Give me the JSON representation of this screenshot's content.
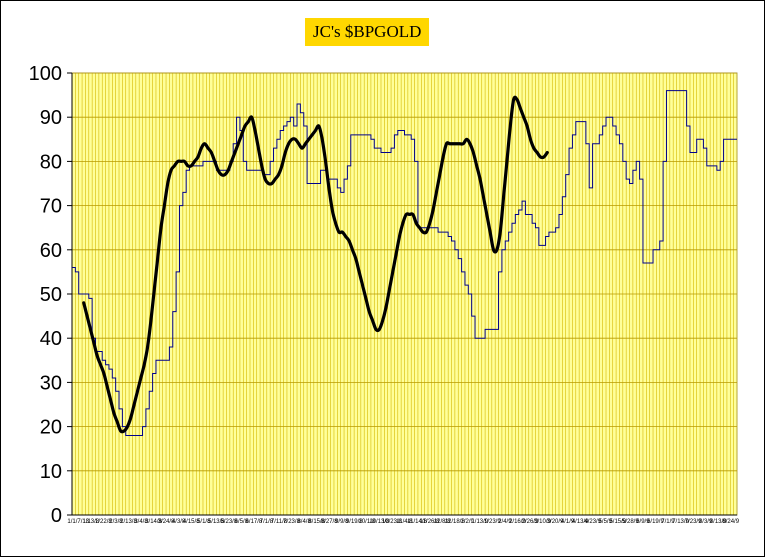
{
  "chart_data": {
    "type": "line",
    "title": "JC's $BPGOLD",
    "xlabel": "",
    "ylabel": "",
    "ylim": [
      0,
      100
    ],
    "yticks": [
      0,
      10,
      20,
      30,
      40,
      50,
      60,
      70,
      80,
      90,
      100
    ],
    "grid": true,
    "legend": "none",
    "x_tick_labels": [
      "1/1/7/13",
      "1/13/8",
      "1/22/8",
      "2/3/8",
      "2/13/8",
      "3/4/8",
      "3/14/8",
      "3/24/8",
      "4/3/8",
      "4/15/8",
      "5/1/8",
      "5/13/8",
      "5/23/8",
      "6/5/8",
      "6/17/8",
      "7/1/8",
      "7/11/8",
      "7/23/8",
      "8/4/8",
      "8/15/8",
      "8/27/8",
      "9/9/8",
      "9/19/8",
      "10/1/8",
      "10/13/8",
      "10/23/8",
      "11/4/8",
      "11/14/8",
      "11/26/8",
      "12/8/8",
      "12/18/8",
      "1/2/9",
      "1/13/9",
      "1/23/9",
      "2/4/9",
      "2/16/9",
      "2/26/9",
      "3/10/9",
      "3/20/9",
      "4/1/9",
      "4/13/9",
      "4/23/9",
      "5/5/9",
      "5/15/9",
      "5/28/9",
      "6/9/9",
      "6/19/9",
      "7/1/9",
      "7/13/9",
      "7/23/9",
      "8/3/9",
      "8/13/9",
      "8/24/9"
    ],
    "series": [
      {
        "name": "",
        "color": "#00008b",
        "style": "thin-step",
        "values": [
          56,
          55,
          50,
          50,
          50,
          49,
          40,
          37,
          37,
          35,
          34,
          33,
          31,
          28,
          24,
          20,
          18,
          18,
          18,
          18,
          18,
          20,
          24,
          28,
          32,
          35,
          35,
          35,
          35,
          38,
          46,
          55,
          70,
          73,
          78,
          79,
          79,
          79,
          79,
          80,
          80,
          80,
          80,
          78,
          78,
          78,
          78,
          80,
          84,
          90,
          87,
          80,
          78,
          78,
          78,
          78,
          78,
          77,
          77,
          80,
          83,
          85,
          87,
          88,
          89,
          90,
          88,
          93,
          91,
          88,
          75,
          75,
          75,
          75,
          78,
          78,
          76,
          76,
          76,
          74,
          73,
          76,
          79,
          86,
          86,
          86,
          86,
          86,
          86,
          85,
          83,
          83,
          82,
          82,
          82,
          83,
          86,
          87,
          87,
          86,
          86,
          85,
          80,
          65,
          65,
          65,
          65,
          65,
          65,
          64,
          64,
          64,
          63,
          62,
          60,
          58,
          55,
          52,
          50,
          45,
          40,
          40,
          40,
          42,
          42,
          42,
          42,
          55,
          60,
          62,
          64,
          66,
          68,
          69,
          71,
          68,
          68,
          66,
          65,
          61,
          61,
          63,
          64,
          64,
          65,
          68,
          72,
          77,
          83,
          86,
          89,
          89,
          89,
          84,
          74,
          84,
          84,
          86,
          88,
          90,
          90,
          88,
          86,
          84,
          80,
          76,
          75,
          78,
          80,
          76,
          57,
          57,
          57,
          60,
          60,
          62,
          80,
          96,
          96,
          96,
          96,
          96,
          96,
          88,
          82,
          82,
          85,
          85,
          83,
          79,
          79,
          79,
          78,
          80,
          85,
          85,
          85,
          85
        ]
      },
      {
        "name": "",
        "color": "#000000",
        "style": "thick-smooth",
        "start_index": 3,
        "values": [
          48,
          45,
          42,
          39,
          36,
          34,
          32,
          29,
          26,
          23,
          21,
          19,
          19,
          20,
          22,
          25,
          28,
          31,
          34,
          38,
          44,
          51,
          58,
          65,
          70,
          75,
          78,
          79,
          80,
          80,
          80,
          79,
          79,
          80,
          81,
          83,
          84,
          83,
          82,
          80,
          78,
          77,
          77,
          78,
          80,
          82,
          84,
          86,
          88,
          89,
          90,
          87,
          83,
          79,
          76,
          75,
          75,
          76,
          77,
          79,
          82,
          84,
          85,
          85,
          84,
          83,
          84,
          85,
          86,
          87,
          88,
          85,
          80,
          74,
          69,
          66,
          64,
          64,
          63,
          62,
          60,
          58,
          55,
          52,
          49,
          46,
          44,
          42,
          42,
          44,
          47,
          51,
          55,
          59,
          63,
          66,
          68,
          68,
          68,
          66,
          65,
          64,
          64,
          66,
          69,
          73,
          77,
          81,
          84,
          84,
          84,
          84,
          84,
          84,
          85,
          84,
          82,
          79,
          76,
          72,
          68,
          64,
          60,
          60,
          64,
          72,
          80,
          88,
          94,
          94,
          92,
          90,
          88,
          85,
          83,
          82,
          81,
          81,
          82
        ]
      }
    ]
  }
}
